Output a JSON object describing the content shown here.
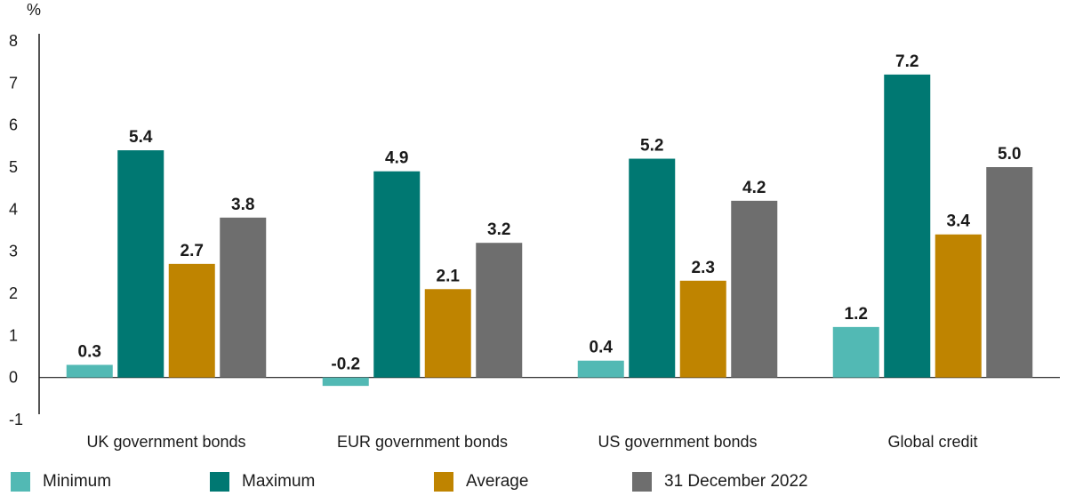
{
  "chart_data": {
    "type": "bar",
    "unit_label": "%",
    "categories": [
      "UK government bonds",
      "EUR government bonds",
      "US government bonds",
      "Global credit"
    ],
    "series": [
      {
        "name": "Minimum",
        "color": "#52b9b4",
        "values": [
          0.3,
          -0.2,
          0.4,
          1.2
        ],
        "labels": [
          "0.3",
          "-0.2",
          "0.4",
          "1.2"
        ]
      },
      {
        "name": "Maximum",
        "color": "#007872",
        "values": [
          5.4,
          4.9,
          5.2,
          7.2
        ],
        "labels": [
          "5.4",
          "4.9",
          "5.2",
          "7.2"
        ]
      },
      {
        "name": "Average",
        "color": "#bf8400",
        "values": [
          2.7,
          2.1,
          2.3,
          3.4
        ],
        "labels": [
          "2.7",
          "2.1",
          "2.3",
          "3.4"
        ]
      },
      {
        "name": "31 December 2022",
        "color": "#6e6e6e",
        "values": [
          3.8,
          3.2,
          4.2,
          5.0
        ],
        "labels": [
          "3.8",
          "3.2",
          "4.2",
          "5.0"
        ]
      }
    ],
    "yticks": [
      "8",
      "7",
      "6",
      "5",
      "4",
      "3",
      "2",
      "1",
      "0",
      "-1"
    ],
    "ylim": [
      -1,
      8
    ],
    "grid": false,
    "legend_position": "bottom"
  }
}
